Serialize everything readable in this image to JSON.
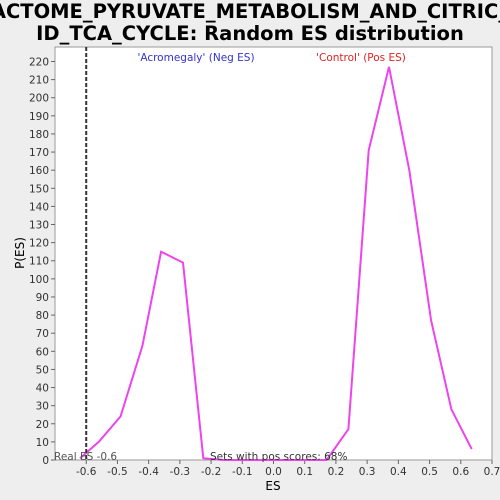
{
  "chart_data": {
    "type": "line",
    "title_lines": [
      "REACTOME_PYRUVATE_METABOLISM_AND_CITRIC_AC",
      "ID_TCA_CYCLE: Random ES distribution"
    ],
    "xlabel": "ES",
    "ylabel": "P(ES)",
    "xlim": [
      -0.7,
      0.7
    ],
    "ylim": [
      0,
      228
    ],
    "x_ticks": [
      -0.6,
      -0.5,
      -0.4,
      -0.3,
      -0.2,
      -0.1,
      0.0,
      0.1,
      0.2,
      0.3,
      0.4,
      0.5,
      0.6,
      0.7
    ],
    "x_tick_labels": [
      "-0.6",
      "-0.5",
      "-0.4",
      "-0.3",
      "-0.2",
      "-0.1",
      "0.0",
      "0.1",
      "0.2",
      "0.3",
      "0.4",
      "0.5",
      "0.6",
      "0.7"
    ],
    "y_ticks": [
      0,
      10,
      20,
      30,
      40,
      50,
      60,
      70,
      80,
      90,
      100,
      110,
      120,
      130,
      140,
      150,
      160,
      170,
      180,
      190,
      200,
      210,
      220
    ],
    "y_tick_labels": [
      "0",
      "10",
      "20",
      "30",
      "40",
      "50",
      "60",
      "70",
      "80",
      "90",
      "100",
      "110",
      "120",
      "130",
      "140",
      "150",
      "160",
      "170",
      "180",
      "190",
      "200",
      "210",
      "220"
    ],
    "series": [
      {
        "color": "#ee44ee",
        "x": [
          -0.62,
          -0.56,
          -0.49,
          -0.42,
          -0.36,
          -0.29,
          -0.225,
          -0.16,
          -0.1,
          -0.03,
          0.03,
          0.1,
          0.17,
          0.24,
          0.305,
          0.37,
          0.435,
          0.505,
          0.57,
          0.635
        ],
        "y": [
          1,
          10,
          24,
          63,
          115,
          109,
          1,
          0,
          0,
          0,
          0,
          0,
          0,
          17,
          171,
          217,
          160,
          77,
          28,
          6
        ]
      }
    ],
    "real_es": -0.6,
    "annotations": {
      "neg_label": "'Acromegaly' (Neg ES)",
      "neg_color": "#3333cc",
      "pos_label": "'Control' (Pos ES)",
      "pos_color": "#dd2222",
      "real_es_label": "Real ES -0.6",
      "pos_scores_label": "Sets with pos scores: 68%"
    },
    "grid": false,
    "legend": "none"
  }
}
